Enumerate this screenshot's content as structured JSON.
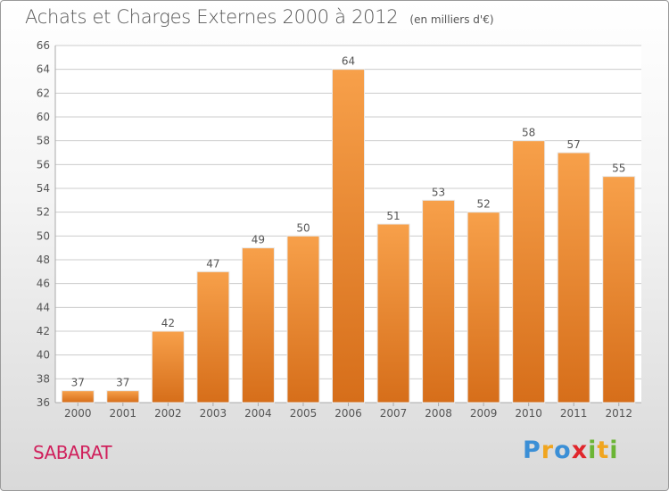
{
  "title": "Achats et Charges Externes 2000 à 2012",
  "unit_note": "(en milliers d'€)",
  "commune": "SABARAT",
  "logo": {
    "letters": [
      "P",
      "r",
      "o",
      "x",
      "i",
      "t",
      "i"
    ],
    "colors": [
      "#3b8fd6",
      "#f0a51f",
      "#3b8fd6",
      "#e0262c",
      "#6bb535",
      "#f0a51f",
      "#6bb535"
    ]
  },
  "colors": {
    "bar_top": "#f7a04a",
    "bar_bottom": "#d66e1a",
    "grid": "#cccccc",
    "text": "#555555",
    "commune": "#d0205c"
  },
  "chart_data": {
    "type": "bar",
    "title": "Achats et Charges Externes 2000 à 2012",
    "xlabel": "",
    "ylabel": "",
    "categories": [
      "2000",
      "2001",
      "2002",
      "2003",
      "2004",
      "2005",
      "2006",
      "2007",
      "2008",
      "2009",
      "2010",
      "2011",
      "2012"
    ],
    "values": [
      37,
      37,
      42,
      47,
      49,
      50,
      64,
      51,
      53,
      52,
      58,
      57,
      55
    ],
    "ylim": [
      36,
      66
    ],
    "yticks": [
      36,
      38,
      40,
      42,
      44,
      46,
      48,
      50,
      52,
      54,
      56,
      58,
      60,
      62,
      64,
      66
    ],
    "grid": true,
    "data_labels": true
  }
}
